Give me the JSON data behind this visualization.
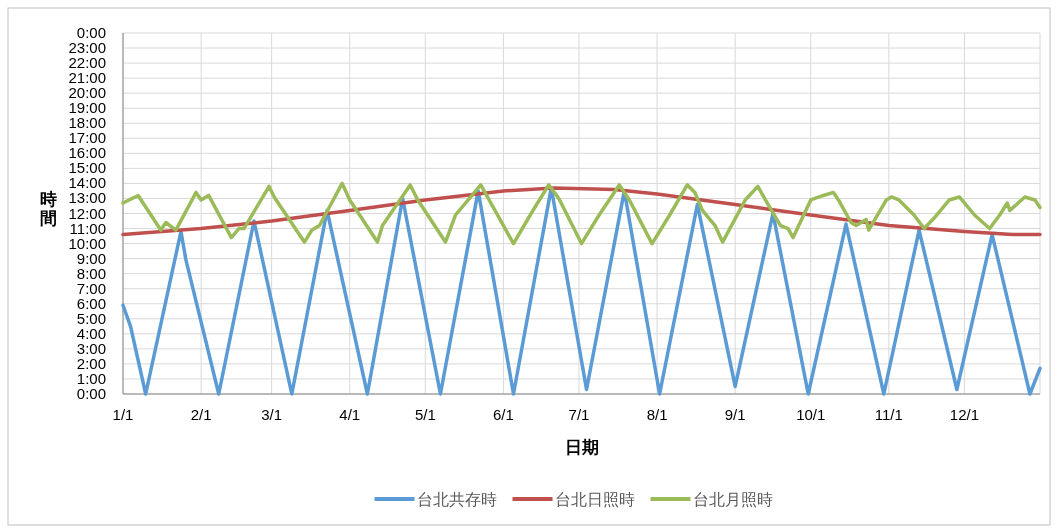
{
  "chart_data": {
    "type": "line",
    "xlabel": "日期",
    "ylabel": "時間",
    "xlim": [
      "--01-01",
      "--12-31"
    ],
    "xticks": [
      {
        "value": "--01-01",
        "label": "1/1"
      },
      {
        "value": "--02-01",
        "label": "2/1"
      },
      {
        "value": "--03-01",
        "label": "3/1"
      },
      {
        "value": "--04-01",
        "label": "4/1"
      },
      {
        "value": "--05-01",
        "label": "5/1"
      },
      {
        "value": "--06-01",
        "label": "6/1"
      },
      {
        "value": "--07-01",
        "label": "7/1"
      },
      {
        "value": "--08-01",
        "label": "8/1"
      },
      {
        "value": "--09-01",
        "label": "9/1"
      },
      {
        "value": "--10-01",
        "label": "10/1"
      },
      {
        "value": "--11-01",
        "label": "11/1"
      },
      {
        "value": "--12-01",
        "label": "12/1"
      }
    ],
    "ylim": [
      0,
      24
    ],
    "yticks": [
      {
        "value": 0,
        "label": "0:00"
      },
      {
        "value": 1,
        "label": "1:00"
      },
      {
        "value": 2,
        "label": "2:00"
      },
      {
        "value": 3,
        "label": "3:00"
      },
      {
        "value": 4,
        "label": "4:00"
      },
      {
        "value": 5,
        "label": "5:00"
      },
      {
        "value": 6,
        "label": "6:00"
      },
      {
        "value": 7,
        "label": "7:00"
      },
      {
        "value": 8,
        "label": "8:00"
      },
      {
        "value": 9,
        "label": "9:00"
      },
      {
        "value": 10,
        "label": "10:00"
      },
      {
        "value": 11,
        "label": "11:00"
      },
      {
        "value": 12,
        "label": "12:00"
      },
      {
        "value": 13,
        "label": "13:00"
      },
      {
        "value": 14,
        "label": "14:00"
      },
      {
        "value": 15,
        "label": "15:00"
      },
      {
        "value": 16,
        "label": "16:00"
      },
      {
        "value": 17,
        "label": "17:00"
      },
      {
        "value": 18,
        "label": "18:00"
      },
      {
        "value": 19,
        "label": "19:00"
      },
      {
        "value": 20,
        "label": "20:00"
      },
      {
        "value": 21,
        "label": "21:00"
      },
      {
        "value": 22,
        "label": "22:00"
      },
      {
        "value": 23,
        "label": "23:00"
      },
      {
        "value": 24,
        "label": "0:00"
      }
    ],
    "grid": true,
    "legend": "bottom",
    "marker": "none",
    "line_style": "solid",
    "series": [
      {
        "name": "台北共存時",
        "color": "#5b9bd5",
        "x": [
          "--01-01",
          "--01-04",
          "--01-10",
          "--01-24",
          "--01-26",
          "--02-08",
          "--02-22",
          "--03-09",
          "--03-23",
          "--04-08",
          "--04-22",
          "--05-07",
          "--05-22",
          "--06-05",
          "--06-20",
          "--07-04",
          "--07-19",
          "--08-02",
          "--08-17",
          "--09-01",
          "--09-16",
          "--09-30",
          "--10-15",
          "--10-30",
          "--11-13",
          "--11-28",
          "--12-12",
          "--12-27",
          "--12-31"
        ],
        "values": [
          5.9,
          4.5,
          0,
          10.8,
          8.9,
          0,
          11.5,
          0,
          12.2,
          0,
          13.0,
          0,
          13.5,
          0,
          13.7,
          0.3,
          13.5,
          0,
          12.6,
          0.5,
          12.0,
          0,
          11.3,
          0,
          10.9,
          0.3,
          10.6,
          0,
          1.7
        ]
      },
      {
        "name": "台北日照時",
        "color": "#c0504d",
        "x": [
          "--01-01",
          "--02-01",
          "--03-01",
          "--04-01",
          "--05-01",
          "--06-01",
          "--06-21",
          "--07-15",
          "--08-01",
          "--09-01",
          "--10-01",
          "--11-01",
          "--12-01",
          "--12-20",
          "--12-31"
        ],
        "values": [
          10.6,
          11.0,
          11.5,
          12.2,
          12.9,
          13.5,
          13.7,
          13.6,
          13.3,
          12.6,
          11.9,
          11.2,
          10.8,
          10.6,
          10.6
        ]
      },
      {
        "name": "台北月照時",
        "color": "#9bbb59",
        "x": [
          "--01-01",
          "--01-07",
          "--01-16",
          "--01-18",
          "--01-22",
          "--01-30",
          "--02-01",
          "--02-04",
          "--02-13",
          "--02-16",
          "--02-18",
          "--02-28",
          "--03-02",
          "--03-14",
          "--03-17",
          "--03-20",
          "--03-29",
          "--04-01",
          "--04-12",
          "--04-14",
          "--04-25",
          "--04-28",
          "--05-09",
          "--05-13",
          "--05-23",
          "--06-05",
          "--06-12",
          "--06-19",
          "--06-23",
          "--07-02",
          "--07-09",
          "--07-17",
          "--07-21",
          "--07-30",
          "--08-06",
          "--08-13",
          "--08-16",
          "--08-19",
          "--08-24",
          "--08-27",
          "--09-05",
          "--09-10",
          "--09-13",
          "--09-19",
          "--09-22",
          "--09-24",
          "--10-01",
          "--10-06",
          "--10-10",
          "--10-12",
          "--10-17",
          "--10-19",
          "--10-23",
          "--10-24",
          "--10-31",
          "--11-02",
          "--11-05",
          "--11-11",
          "--11-15",
          "--11-19",
          "--11-25",
          "--11-29",
          "--12-05",
          "--12-11",
          "--12-15",
          "--12-18",
          "--12-19",
          "--12-25",
          "--12-29",
          "--12-31"
        ],
        "values": [
          12.7,
          13.2,
          10.9,
          11.4,
          10.9,
          13.4,
          12.9,
          13.2,
          10.4,
          11.0,
          11.0,
          13.8,
          13.1,
          10.1,
          10.9,
          11.2,
          14.0,
          12.9,
          10.1,
          11.2,
          13.9,
          12.9,
          10.1,
          11.9,
          13.9,
          10.0,
          12.0,
          13.9,
          13.0,
          10.0,
          11.9,
          13.9,
          12.9,
          10.0,
          11.9,
          13.9,
          13.4,
          12.2,
          11.2,
          10.1,
          12.9,
          13.8,
          12.9,
          11.2,
          11.0,
          10.4,
          12.9,
          13.2,
          13.4,
          12.9,
          11.4,
          11.2,
          11.6,
          10.9,
          12.9,
          13.1,
          12.9,
          11.9,
          11.0,
          11.7,
          12.9,
          13.1,
          11.9,
          11.0,
          11.9,
          12.7,
          12.2,
          13.1,
          12.9,
          12.4
        ]
      }
    ]
  }
}
